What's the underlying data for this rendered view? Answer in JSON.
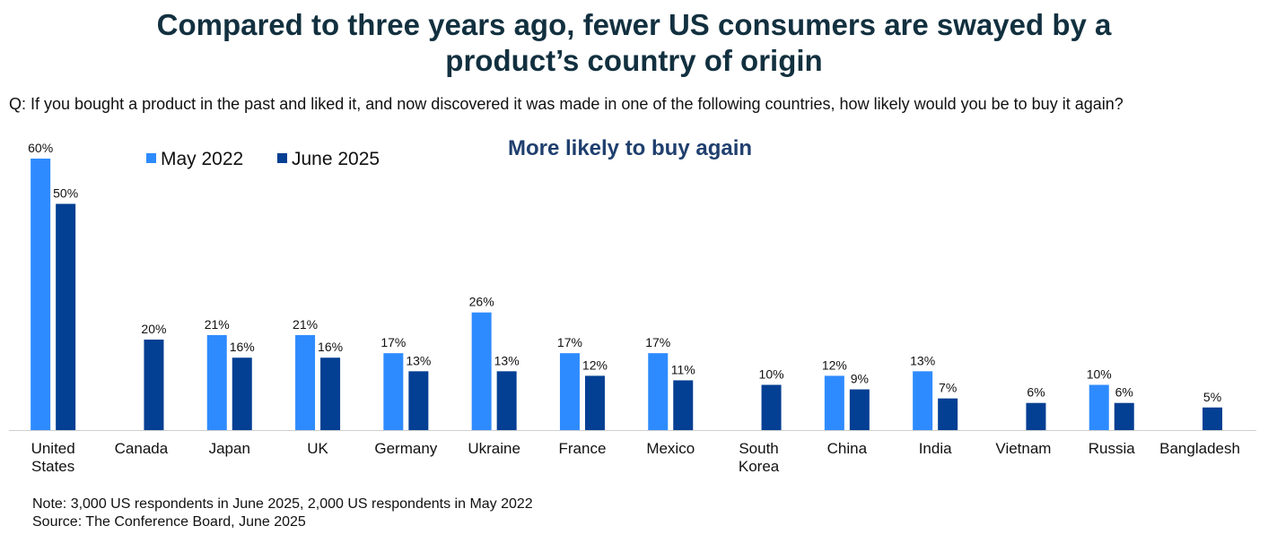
{
  "header": {
    "title_line1": "Compared to three years ago, fewer US consumers are swayed by a",
    "title_line2": "product’s country of origin",
    "question": "Q: If you bought a product in the past and liked it, and now discovered it was made in one of the following countries, how likely would you be to buy it again?",
    "subtitle": "More likely to buy again"
  },
  "footer": {
    "note": "Note: 3,000 US respondents in June 2025, 2,000 US respondents in May 2022",
    "source": "Source: The Conference Board, June 2025"
  },
  "colors": {
    "may2022": "#2e8bff",
    "june2025": "#033f93"
  },
  "chart_data": {
    "type": "bar",
    "title": "More likely to buy again",
    "xlabel": "",
    "ylabel": "",
    "ylim": [
      0,
      60
    ],
    "grid": false,
    "legend_position": "top-left",
    "categories": [
      [
        "United",
        "States"
      ],
      [
        "Canada"
      ],
      [
        "Japan"
      ],
      [
        "UK"
      ],
      [
        "Germany"
      ],
      [
        "Ukraine"
      ],
      [
        "France"
      ],
      [
        "Mexico"
      ],
      [
        "South",
        "Korea"
      ],
      [
        "China"
      ],
      [
        "India"
      ],
      [
        "Vietnam"
      ],
      [
        "Russia"
      ],
      [
        "Bangladesh"
      ]
    ],
    "series": [
      {
        "name": "May 2022",
        "values": [
          60,
          null,
          21,
          21,
          17,
          26,
          17,
          17,
          null,
          12,
          13,
          null,
          10,
          null
        ]
      },
      {
        "name": "June 2025",
        "values": [
          50,
          20,
          16,
          16,
          13,
          13,
          12,
          11,
          10,
          9,
          7,
          6,
          6,
          5
        ]
      }
    ],
    "value_suffix": "%"
  }
}
